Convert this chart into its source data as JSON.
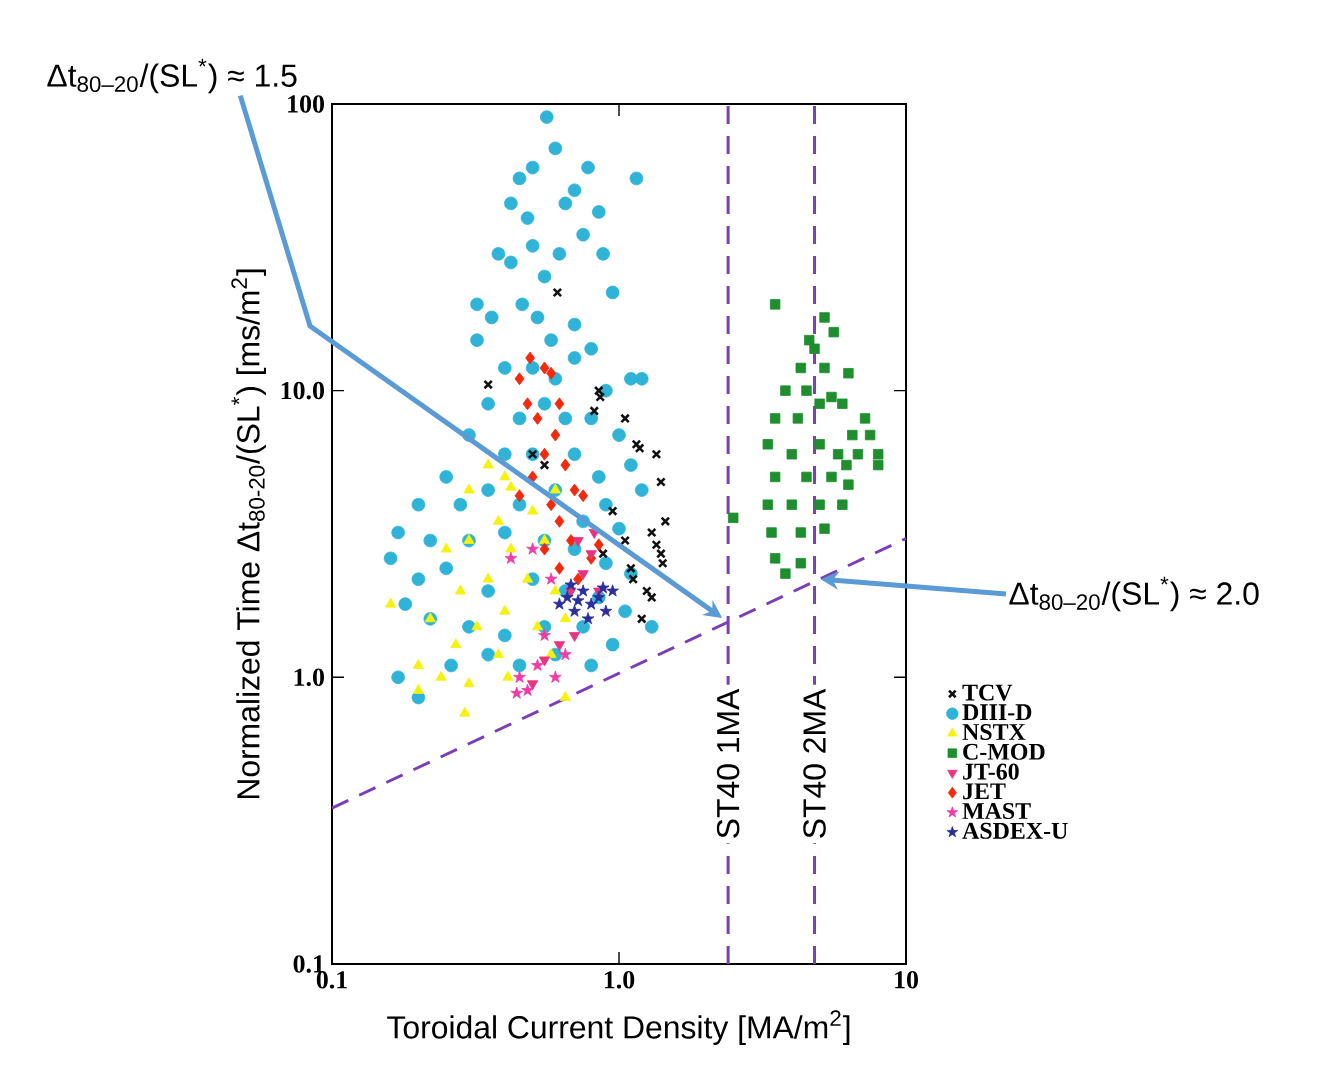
{
  "chart_data": {
    "type": "scatter",
    "xlabel": "Toroidal Current Density [MA/m$^{2}$]",
    "ylabel": "Normalized Time Δt$_{80-20}$/(SL$^{*}$) [ms/m$^{2}$]",
    "log": "xy",
    "xlim": [
      0.1,
      10
    ],
    "ylim": [
      0.1,
      100
    ],
    "xticks": [
      0.1,
      {
        "value": 1,
        "label": "1.0"
      },
      10
    ],
    "yticks": [
      0.1,
      {
        "value": 1,
        "label": "1.0"
      },
      {
        "value": 10,
        "label": "10.0"
      },
      100
    ],
    "grid": false,
    "legend": "right",
    "series": [
      {
        "name": "TCV",
        "color": "#111111",
        "marker": "cross",
        "x": [
          0.61,
          0.35,
          0.85,
          0.86,
          0.82,
          1.05,
          1.15,
          1.18,
          1.35,
          0.5,
          0.55,
          1.4,
          0.95,
          1.05,
          1.3,
          1.35,
          1.4,
          1.42,
          1.1,
          1.12,
          1.25,
          1.3,
          1.2,
          0.88,
          1.45
        ],
        "values": [
          22,
          10.5,
          10,
          9.5,
          8.5,
          8,
          6.5,
          6.3,
          6.0,
          6,
          5.5,
          4.8,
          3.8,
          3.0,
          3.2,
          2.9,
          2.7,
          2.5,
          2.4,
          2.2,
          2.0,
          1.9,
          1.6,
          2.7,
          3.5
        ]
      },
      {
        "name": "DIII-D",
        "color": "#2fb3d6",
        "marker": "circle",
        "x": [
          0.56,
          0.5,
          0.6,
          0.45,
          0.42,
          0.48,
          0.7,
          0.78,
          0.65,
          0.85,
          1.15,
          0.38,
          0.42,
          0.5,
          0.55,
          0.62,
          0.75,
          0.88,
          0.95,
          0.32,
          0.36,
          0.46,
          0.52,
          0.32,
          0.58,
          0.7,
          0.8,
          0.4,
          0.5,
          0.6,
          0.7,
          0.9,
          1.1,
          1.2,
          0.35,
          0.45,
          0.55,
          0.65,
          0.8,
          1.0,
          0.3,
          0.4,
          0.5,
          0.7,
          0.85,
          1.1,
          0.25,
          0.35,
          0.6,
          0.9,
          1.2,
          0.2,
          0.28,
          0.45,
          0.75,
          1.0,
          0.17,
          0.22,
          0.3,
          0.4,
          0.55,
          0.7,
          0.9,
          1.1,
          0.16,
          0.2,
          0.25,
          0.35,
          0.5,
          0.65,
          0.85,
          1.05,
          0.18,
          0.22,
          0.3,
          0.4,
          0.55,
          0.75,
          0.95,
          0.17,
          0.2,
          0.26,
          0.35,
          0.45,
          0.6,
          0.8,
          1.3
        ],
        "values": [
          90,
          60,
          70,
          55,
          45,
          40,
          50,
          60,
          45,
          42,
          55,
          30,
          28,
          32,
          25,
          30,
          35,
          30,
          22,
          20,
          18,
          20,
          18,
          15,
          15,
          17,
          14,
          12,
          12,
          11,
          13,
          10,
          11,
          11,
          9,
          8,
          9,
          8,
          8,
          7,
          7,
          6,
          6,
          6,
          5,
          5.5,
          5,
          4.5,
          4.5,
          4,
          4.5,
          4,
          4,
          4,
          3.5,
          3.3,
          3.2,
          3.0,
          3.0,
          3.2,
          3.0,
          2.8,
          2.5,
          2.3,
          2.6,
          2.2,
          2.4,
          2.0,
          2.2,
          2.0,
          1.9,
          1.7,
          1.8,
          1.6,
          1.5,
          1.4,
          1.5,
          1.5,
          1.3,
          1.0,
          0.85,
          1.1,
          1.2,
          1.1,
          1.2,
          1.1,
          1.5
        ]
      },
      {
        "name": "NSTX",
        "color": "#f5f20f",
        "marker": "triangle",
        "x": [
          0.3,
          0.35,
          0.4,
          0.42,
          0.38,
          0.5,
          0.3,
          0.25,
          0.42,
          0.55,
          0.6,
          0.35,
          0.28,
          0.48,
          0.6,
          0.22,
          0.32,
          0.4,
          0.52,
          0.65,
          0.2,
          0.24,
          0.3,
          0.38,
          0.41,
          0.2,
          0.29,
          0.65,
          0.58,
          0.16,
          0.27
        ],
        "values": [
          4.5,
          5.5,
          5.0,
          4.6,
          3.5,
          3.8,
          3.0,
          2.8,
          2.8,
          3.0,
          4.5,
          2.2,
          2.0,
          2.2,
          2.0,
          1.6,
          1.5,
          1.7,
          1.5,
          1.6,
          1.1,
          1.0,
          0.95,
          1.2,
          1.0,
          0.9,
          0.75,
          0.85,
          1.2,
          1.8,
          1.3
        ]
      },
      {
        "name": "C-MOD",
        "color": "#1e8e2e",
        "marker": "square",
        "x": [
          3.5,
          5.2,
          5.6,
          4.6,
          4.8,
          4.3,
          5.2,
          6.3,
          3.8,
          4.5,
          5.0,
          5.5,
          6.0,
          7.2,
          3.5,
          4.2,
          6.5,
          7.5,
          3.3,
          4.0,
          5.0,
          5.8,
          6.8,
          8.0,
          3.5,
          4.5,
          5.5,
          6.2,
          3.3,
          4.0,
          5.0,
          6.0,
          3.4,
          4.3,
          5.2,
          3.5,
          4.3,
          3.8,
          2.5,
          6.3,
          8.0
        ],
        "values": [
          20,
          18,
          16,
          15,
          14,
          12,
          12,
          11.5,
          10,
          10,
          9,
          9.5,
          9,
          8,
          8,
          8,
          7,
          7,
          6.5,
          6,
          6.5,
          6,
          6,
          5.5,
          5,
          5,
          5,
          5.5,
          4,
          4,
          4,
          4,
          3.2,
          3.2,
          3.3,
          2.6,
          2.5,
          2.3,
          3.6,
          4.7,
          6.0
        ]
      },
      {
        "name": "JT-60",
        "color": "#e8347f",
        "marker": "triangle_down",
        "x": [
          0.82,
          0.72,
          0.8,
          0.75,
          0.85,
          0.68,
          0.62,
          0.55,
          0.5,
          0.7
        ],
        "values": [
          3.2,
          3.0,
          2.7,
          2.3,
          2.0,
          2.0,
          1.3,
          1.15,
          0.95,
          1.4
        ]
      },
      {
        "name": "JET",
        "color": "#f2290c",
        "marker": "diamond",
        "x": [
          0.49,
          0.55,
          0.58,
          0.45,
          0.62,
          0.48,
          0.52,
          0.6,
          0.55,
          0.65,
          0.5,
          0.7,
          0.45,
          0.58,
          0.62,
          0.75,
          0.68,
          0.55,
          0.8,
          0.72,
          0.85,
          0.62
        ],
        "values": [
          13,
          12,
          11.5,
          11,
          9,
          9,
          8,
          7,
          6,
          5.5,
          5,
          4.5,
          4.3,
          4,
          3.5,
          4.3,
          3,
          2.8,
          2.6,
          2.2,
          2.9,
          2.4
        ]
      },
      {
        "name": "MAST",
        "color": "#f03ca6",
        "marker": "star",
        "x": [
          0.45,
          0.48,
          0.52,
          0.55,
          0.58,
          0.5,
          0.44,
          0.6,
          0.65,
          0.42
        ],
        "values": [
          1.0,
          0.9,
          1.1,
          1.4,
          2.2,
          2.8,
          0.88,
          1.0,
          1.2,
          2.6
        ]
      },
      {
        "name": "ASDEX-U",
        "color": "#2b2f9c",
        "marker": "star",
        "x": [
          0.62,
          0.66,
          0.7,
          0.75,
          0.8,
          0.85,
          0.9,
          0.68,
          0.78,
          0.95,
          0.72,
          0.88
        ],
        "values": [
          1.8,
          1.9,
          1.7,
          2.0,
          1.8,
          1.9,
          1.7,
          2.1,
          1.6,
          2.0,
          1.85,
          2.05
        ]
      },
      {
        "type": "line",
        "color": "#7b3fb5",
        "line_style": "dashed",
        "x": [
          0.1,
          10
        ],
        "values": [
          0.35,
          3.05
        ]
      }
    ],
    "ref_lines": [
      {
        "axis": "x",
        "value": 2.4,
        "label": "ST40 1MA",
        "color": "#7b3fb5",
        "line_style": "dashed"
      },
      {
        "axis": "x",
        "value": 4.8,
        "label": "ST40 2MA",
        "color": "#7b3fb5",
        "line_style": "dashed"
      }
    ],
    "annotations": [
      "Δt$_{80–20}$/(SL$^{*}$)  ≈ 1.5",
      {
        "text": "Δt$_{80–20}$/(SL$^{*}$) ≈ 2.0",
        "x": 4.8,
        "y": 2.2
      }
    ]
  }
}
